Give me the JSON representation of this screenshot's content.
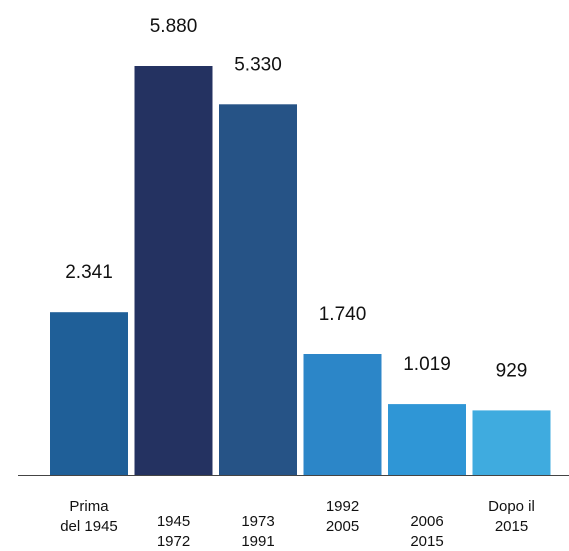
{
  "chart_data": {
    "type": "bar",
    "title": "",
    "xlabel": "",
    "ylabel": "",
    "ylim": [
      0,
      5880
    ],
    "grid": false,
    "legend": "none",
    "categories": [
      [
        "Prima",
        "del 1945"
      ],
      [
        "1945",
        "1972"
      ],
      [
        "1973",
        "1991"
      ],
      [
        "1992",
        "2005"
      ],
      [
        "2006",
        "2015"
      ],
      [
        "Dopo il",
        "2015"
      ]
    ],
    "values": [
      2341,
      5880,
      5330,
      1740,
      1019,
      929
    ],
    "value_labels": [
      "2.341",
      "5.880",
      "5.330",
      "1.740",
      "1.019",
      "929"
    ],
    "colors": [
      "#1f5f98",
      "#243261",
      "#265386",
      "#2c86c8",
      "#2f96d6",
      "#3fabdf"
    ],
    "axis_color": "#444444"
  }
}
